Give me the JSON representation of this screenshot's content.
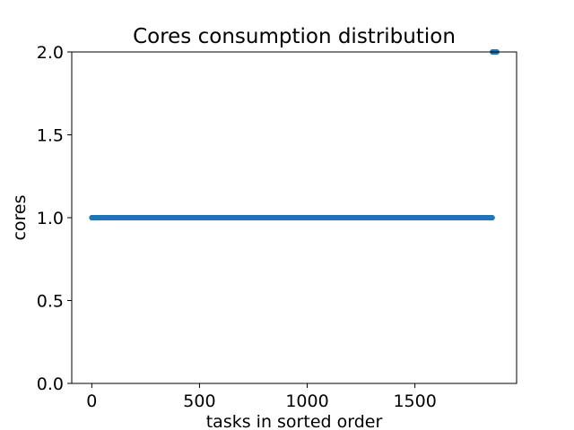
{
  "chart_data": {
    "type": "scatter",
    "title": "Cores consumption distribution",
    "xlabel": "tasks in sorted order",
    "ylabel": "cores",
    "xlim": [
      -93,
      1972
    ],
    "ylim": [
      0.0,
      2.0
    ],
    "xticks": [
      {
        "value": 0,
        "label": "0"
      },
      {
        "value": 500,
        "label": "500"
      },
      {
        "value": 1000,
        "label": "1000"
      },
      {
        "value": 1500,
        "label": "1500"
      }
    ],
    "yticks": [
      {
        "value": 0.0,
        "label": "0.0"
      },
      {
        "value": 0.5,
        "label": "0.5"
      },
      {
        "value": 1.0,
        "label": "1.0"
      },
      {
        "value": 1.5,
        "label": "1.5"
      },
      {
        "value": 2.0,
        "label": "2.0"
      }
    ],
    "grid": false,
    "series": [
      {
        "color": "#1f77b4",
        "x_range": [
          0,
          1859
        ],
        "y_constant": 1.0
      },
      {
        "color": "#1f77b4",
        "x": [
          1860,
          1861,
          1862,
          1863,
          1864,
          1865,
          1866,
          1867,
          1868,
          1869,
          1870,
          1871,
          1872,
          1873,
          1874,
          1875,
          1876,
          1877,
          1878,
          1879,
          1880
        ],
        "y_constant": 2.0
      }
    ]
  }
}
